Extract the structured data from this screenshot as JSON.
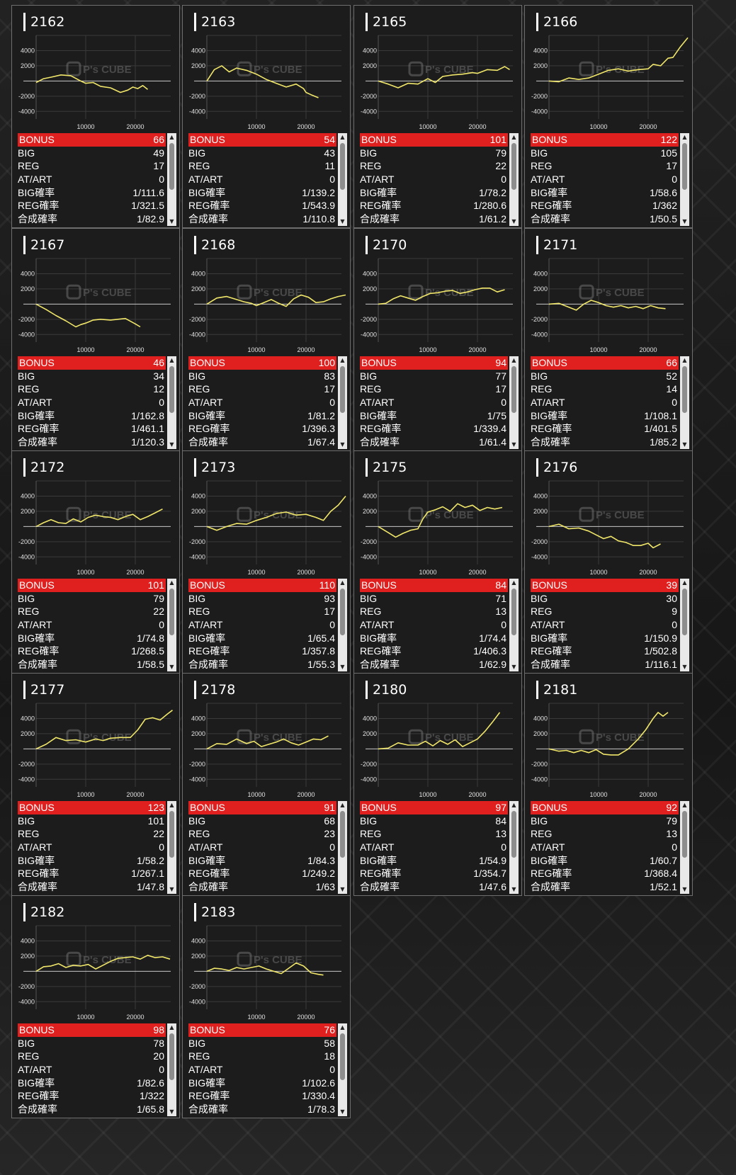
{
  "labels": {
    "bonus": "BONUS",
    "big": "BIG",
    "reg": "REG",
    "atart": "AT/ART",
    "big_rate": "BIG確率",
    "reg_rate": "REG確率",
    "total_rate": "合成確率"
  },
  "watermark": "P's CUBE",
  "colors": {
    "bonus_bar": "#e0201f",
    "line": "#f0e66a",
    "axis": "#c8c8c8",
    "card_bg": "#1c1c1c"
  },
  "icons": {
    "scroll_up": "triangle-up-icon",
    "scroll_down": "triangle-down-icon"
  },
  "cards": [
    {
      "machine": "2162",
      "bonus": "66",
      "big": "49",
      "reg": "17",
      "atart": "0",
      "big_rate": "1/111.6",
      "reg_rate": "1/321.5",
      "total_rate": "1/82.9"
    },
    {
      "machine": "2163",
      "bonus": "54",
      "big": "43",
      "reg": "11",
      "atart": "0",
      "big_rate": "1/139.2",
      "reg_rate": "1/543.9",
      "total_rate": "1/110.8"
    },
    {
      "machine": "2165",
      "bonus": "101",
      "big": "79",
      "reg": "22",
      "atart": "0",
      "big_rate": "1/78.2",
      "reg_rate": "1/280.6",
      "total_rate": "1/61.2"
    },
    {
      "machine": "2166",
      "bonus": "122",
      "big": "105",
      "reg": "17",
      "atart": "0",
      "big_rate": "1/58.6",
      "reg_rate": "1/362",
      "total_rate": "1/50.5"
    },
    {
      "machine": "2167",
      "bonus": "46",
      "big": "34",
      "reg": "12",
      "atart": "0",
      "big_rate": "1/162.8",
      "reg_rate": "1/461.1",
      "total_rate": "1/120.3"
    },
    {
      "machine": "2168",
      "bonus": "100",
      "big": "83",
      "reg": "17",
      "atart": "0",
      "big_rate": "1/81.2",
      "reg_rate": "1/396.3",
      "total_rate": "1/67.4"
    },
    {
      "machine": "2170",
      "bonus": "94",
      "big": "77",
      "reg": "17",
      "atart": "0",
      "big_rate": "1/75",
      "reg_rate": "1/339.4",
      "total_rate": "1/61.4"
    },
    {
      "machine": "2171",
      "bonus": "66",
      "big": "52",
      "reg": "14",
      "atart": "0",
      "big_rate": "1/108.1",
      "reg_rate": "1/401.5",
      "total_rate": "1/85.2"
    },
    {
      "machine": "2172",
      "bonus": "101",
      "big": "79",
      "reg": "22",
      "atart": "0",
      "big_rate": "1/74.8",
      "reg_rate": "1/268.5",
      "total_rate": "1/58.5"
    },
    {
      "machine": "2173",
      "bonus": "110",
      "big": "93",
      "reg": "17",
      "atart": "0",
      "big_rate": "1/65.4",
      "reg_rate": "1/357.8",
      "total_rate": "1/55.3"
    },
    {
      "machine": "2175",
      "bonus": "84",
      "big": "71",
      "reg": "13",
      "atart": "0",
      "big_rate": "1/74.4",
      "reg_rate": "1/406.3",
      "total_rate": "1/62.9"
    },
    {
      "machine": "2176",
      "bonus": "39",
      "big": "30",
      "reg": "9",
      "atart": "0",
      "big_rate": "1/150.9",
      "reg_rate": "1/502.8",
      "total_rate": "1/116.1"
    },
    {
      "machine": "2177",
      "bonus": "123",
      "big": "101",
      "reg": "22",
      "atart": "0",
      "big_rate": "1/58.2",
      "reg_rate": "1/267.1",
      "total_rate": "1/47.8"
    },
    {
      "machine": "2178",
      "bonus": "91",
      "big": "68",
      "reg": "23",
      "atart": "0",
      "big_rate": "1/84.3",
      "reg_rate": "1/249.2",
      "total_rate": "1/63"
    },
    {
      "machine": "2180",
      "bonus": "97",
      "big": "84",
      "reg": "13",
      "atart": "0",
      "big_rate": "1/54.9",
      "reg_rate": "1/354.7",
      "total_rate": "1/47.6"
    },
    {
      "machine": "2181",
      "bonus": "92",
      "big": "79",
      "reg": "13",
      "atart": "0",
      "big_rate": "1/60.7",
      "reg_rate": "1/368.4",
      "total_rate": "1/52.1"
    },
    {
      "machine": "2182",
      "bonus": "98",
      "big": "78",
      "reg": "20",
      "atart": "0",
      "big_rate": "1/82.6",
      "reg_rate": "1/322",
      "total_rate": "1/65.8"
    },
    {
      "machine": "2183",
      "bonus": "76",
      "big": "58",
      "reg": "18",
      "atart": "0",
      "big_rate": "1/102.6",
      "reg_rate": "1/330.4",
      "total_rate": "1/78.3"
    }
  ],
  "chart_data": {
    "type": "line",
    "xlim": [
      0,
      28000
    ],
    "ylim": [
      -5000,
      6000
    ],
    "x_ticks": [
      10000,
      20000
    ],
    "y_ticks": [
      4000,
      2000,
      -2000,
      -4000
    ],
    "grid": true,
    "series": [
      {
        "machine": "2162",
        "x": [
          0,
          1500,
          3000,
          5000,
          7000,
          9000,
          10000,
          11500,
          13000,
          15000,
          17000,
          18500,
          19500,
          20500,
          21500,
          22500
        ],
        "y": [
          -200,
          300,
          500,
          800,
          700,
          0,
          -300,
          -200,
          -700,
          -900,
          -1500,
          -1200,
          -800,
          -1000,
          -600,
          -1100
        ]
      },
      {
        "machine": "2163",
        "x": [
          0,
          1500,
          3000,
          4500,
          6000,
          8000,
          10000,
          12000,
          14000,
          16000,
          18000,
          19500,
          20000,
          21000,
          22500
        ],
        "y": [
          0,
          1500,
          2000,
          1200,
          1700,
          1400,
          900,
          200,
          -300,
          -800,
          -400,
          -1000,
          -1500,
          -1800,
          -2200
        ]
      },
      {
        "machine": "2165",
        "x": [
          0,
          2000,
          4000,
          6000,
          8000,
          10000,
          11500,
          13000,
          15000,
          17000,
          19000,
          20000,
          22000,
          24000,
          25500,
          26500
        ],
        "y": [
          0,
          -400,
          -900,
          -300,
          -400,
          300,
          -200,
          600,
          800,
          900,
          1100,
          1000,
          1500,
          1400,
          1900,
          1500
        ]
      },
      {
        "machine": "2166",
        "x": [
          0,
          2000,
          4000,
          6000,
          8000,
          10000,
          12000,
          14000,
          16000,
          18000,
          20000,
          21000,
          22500,
          24000,
          25000,
          26500,
          28000
        ],
        "y": [
          0,
          -100,
          400,
          200,
          400,
          900,
          1400,
          1600,
          1300,
          1500,
          1600,
          2200,
          2000,
          3000,
          3100,
          4500,
          5700
        ]
      },
      {
        "machine": "2167",
        "x": [
          0,
          2000,
          4000,
          6000,
          8000,
          9000,
          10000,
          11500,
          13000,
          15000,
          16500,
          18000,
          20000,
          21000
        ],
        "y": [
          0,
          -700,
          -1500,
          -2200,
          -3000,
          -2700,
          -2500,
          -2100,
          -2000,
          -2100,
          -2000,
          -1900,
          -2600,
          -3000
        ]
      },
      {
        "machine": "2168",
        "x": [
          0,
          2000,
          4000,
          6000,
          7500,
          9000,
          10000,
          11500,
          13000,
          14500,
          16000,
          17500,
          19000,
          20500,
          22000,
          23500,
          25000,
          26500,
          28000
        ],
        "y": [
          0,
          800,
          1000,
          600,
          300,
          100,
          -200,
          200,
          600,
          100,
          -300,
          700,
          1200,
          900,
          200,
          300,
          700,
          1000,
          1200
        ]
      },
      {
        "machine": "2170",
        "x": [
          0,
          1500,
          3000,
          4500,
          6000,
          7500,
          9000,
          10500,
          12000,
          13500,
          15000,
          16500,
          18000,
          19500,
          21000,
          22500,
          24000,
          25500
        ],
        "y": [
          0,
          100,
          700,
          1100,
          800,
          500,
          1000,
          1400,
          1500,
          1700,
          1800,
          1400,
          1600,
          1900,
          2100,
          2100,
          1600,
          1900
        ]
      },
      {
        "machine": "2171",
        "x": [
          0,
          2000,
          4000,
          5500,
          7000,
          8500,
          10000,
          11500,
          13000,
          14500,
          16000,
          17500,
          19000,
          20500,
          22000,
          23500
        ],
        "y": [
          0,
          100,
          -400,
          -800,
          0,
          500,
          200,
          -200,
          -400,
          -200,
          -500,
          -300,
          -600,
          -200,
          -500,
          -600
        ]
      },
      {
        "machine": "2172",
        "x": [
          0,
          1500,
          3000,
          4500,
          6000,
          7500,
          9000,
          10500,
          12000,
          13500,
          15000,
          16500,
          18000,
          19500,
          21000,
          22500,
          24000,
          25500
        ],
        "y": [
          0,
          500,
          900,
          500,
          400,
          1000,
          600,
          1200,
          1500,
          1300,
          1200,
          900,
          1300,
          1600,
          900,
          1300,
          1800,
          2300
        ]
      },
      {
        "machine": "2173",
        "x": [
          0,
          2000,
          4000,
          6000,
          8000,
          10000,
          12000,
          14000,
          16000,
          18000,
          20000,
          22000,
          23500,
          25000,
          26500,
          28000
        ],
        "y": [
          0,
          -500,
          0,
          400,
          300,
          800,
          1200,
          1700,
          1900,
          1500,
          1600,
          1200,
          800,
          2000,
          2800,
          4000
        ]
      },
      {
        "machine": "2175",
        "x": [
          0,
          2000,
          3500,
          5000,
          6500,
          8000,
          9000,
          10000,
          11500,
          13000,
          14500,
          16000,
          17500,
          19000,
          20500,
          22000,
          23500,
          25000
        ],
        "y": [
          0,
          -800,
          -1400,
          -900,
          -500,
          -300,
          1000,
          1900,
          2200,
          2600,
          2000,
          3000,
          2500,
          2800,
          2100,
          2500,
          2300,
          2500
        ]
      },
      {
        "machine": "2176",
        "x": [
          0,
          2000,
          4000,
          6000,
          8000,
          9500,
          11000,
          12500,
          14000,
          15500,
          17000,
          18500,
          20000,
          21000,
          22500
        ],
        "y": [
          0,
          300,
          -300,
          -200,
          -600,
          -1100,
          -1600,
          -1300,
          -1900,
          -2100,
          -2500,
          -2500,
          -2200,
          -2800,
          -2300
        ]
      },
      {
        "machine": "2177",
        "x": [
          0,
          2000,
          4000,
          6000,
          8000,
          10000,
          12000,
          13500,
          15000,
          17000,
          19000,
          20500,
          22000,
          23500,
          25000,
          26500,
          27500
        ],
        "y": [
          0,
          600,
          1500,
          1100,
          1200,
          900,
          1300,
          1100,
          1400,
          1500,
          1500,
          2500,
          3900,
          4100,
          3800,
          4600,
          5100
        ]
      },
      {
        "machine": "2178",
        "x": [
          0,
          2000,
          4000,
          6000,
          8000,
          9500,
          11000,
          12500,
          14000,
          15500,
          17000,
          18500,
          20000,
          21500,
          23000,
          24500
        ],
        "y": [
          0,
          700,
          600,
          1300,
          700,
          1000,
          300,
          600,
          900,
          1300,
          800,
          500,
          900,
          1300,
          1200,
          1700
        ]
      },
      {
        "machine": "2180",
        "x": [
          0,
          2000,
          4000,
          6000,
          8000,
          9500,
          11000,
          12500,
          14000,
          15500,
          17000,
          18500,
          20000,
          21500,
          23000,
          24500
        ],
        "y": [
          0,
          100,
          800,
          500,
          500,
          1000,
          400,
          1100,
          600,
          1200,
          300,
          800,
          1300,
          2300,
          3500,
          4800
        ]
      },
      {
        "machine": "2181",
        "x": [
          0,
          2000,
          3500,
          5000,
          6500,
          8000,
          9500,
          11000,
          12500,
          14000,
          16000,
          18000,
          19500,
          21000,
          22000,
          23000,
          24000
        ],
        "y": [
          0,
          -300,
          -200,
          -500,
          -200,
          -500,
          -100,
          -700,
          -800,
          -800,
          0,
          1300,
          2500,
          4000,
          4800,
          4300,
          4800
        ]
      },
      {
        "machine": "2182",
        "x": [
          0,
          1500,
          3000,
          4500,
          6000,
          7500,
          9000,
          10500,
          12000,
          13500,
          15000,
          16500,
          18000,
          19500,
          21000,
          22500,
          24000,
          25500,
          27000
        ],
        "y": [
          0,
          600,
          700,
          1000,
          500,
          800,
          700,
          900,
          300,
          800,
          1300,
          1700,
          1800,
          1900,
          1600,
          2100,
          1800,
          1900,
          1600
        ]
      },
      {
        "machine": "2183",
        "x": [
          0,
          1500,
          3000,
          4500,
          6000,
          7500,
          9000,
          10500,
          12000,
          13500,
          15000,
          16500,
          18000,
          19500,
          21000,
          22500,
          23500
        ],
        "y": [
          0,
          400,
          300,
          100,
          500,
          300,
          500,
          700,
          300,
          0,
          -300,
          400,
          1100,
          700,
          -200,
          -400,
          -500
        ]
      }
    ]
  }
}
